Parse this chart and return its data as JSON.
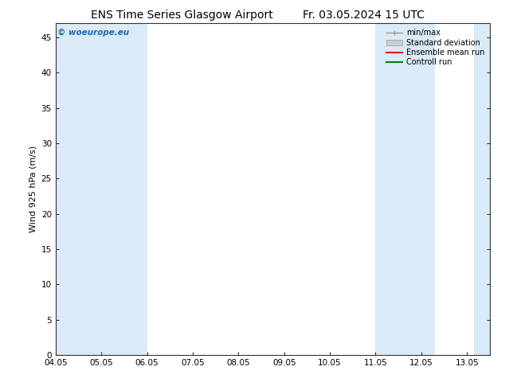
{
  "title_left": "ENS Time Series Glasgow Airport",
  "title_right": "Fr. 03.05.2024 15 UTC",
  "ylabel": "Wind 925 hPa (m/s)",
  "watermark": "© woeurope.eu",
  "ylim": [
    0,
    47
  ],
  "yticks": [
    0,
    5,
    10,
    15,
    20,
    25,
    30,
    35,
    40,
    45
  ],
  "xtick_labels": [
    "04.05",
    "05.05",
    "06.05",
    "07.05",
    "08.05",
    "09.05",
    "10.05",
    "11.05",
    "12.05",
    "13.05"
  ],
  "shade_color": "#daeaf7",
  "background_color": "#ffffff",
  "plot_bg_color": "#ffffff",
  "legend_items": [
    {
      "label": "min/max",
      "color": "#aaaaaa",
      "style": "minmax"
    },
    {
      "label": "Standard deviation",
      "color": "#cccccc",
      "style": "band"
    },
    {
      "label": "Ensemble mean run",
      "color": "#ff0000",
      "style": "line"
    },
    {
      "label": "Controll run",
      "color": "#008000",
      "style": "line"
    }
  ],
  "title_fontsize": 10,
  "axis_fontsize": 8,
  "tick_fontsize": 7.5,
  "watermark_color": "#1a6bb5",
  "xmin": 0,
  "xmax": 9.5,
  "shade_regions": [
    [
      0.0,
      1.0
    ],
    [
      1.0,
      2.0
    ],
    [
      7.0,
      7.5
    ],
    [
      7.5,
      8.3
    ],
    [
      9.15,
      9.5
    ]
  ]
}
